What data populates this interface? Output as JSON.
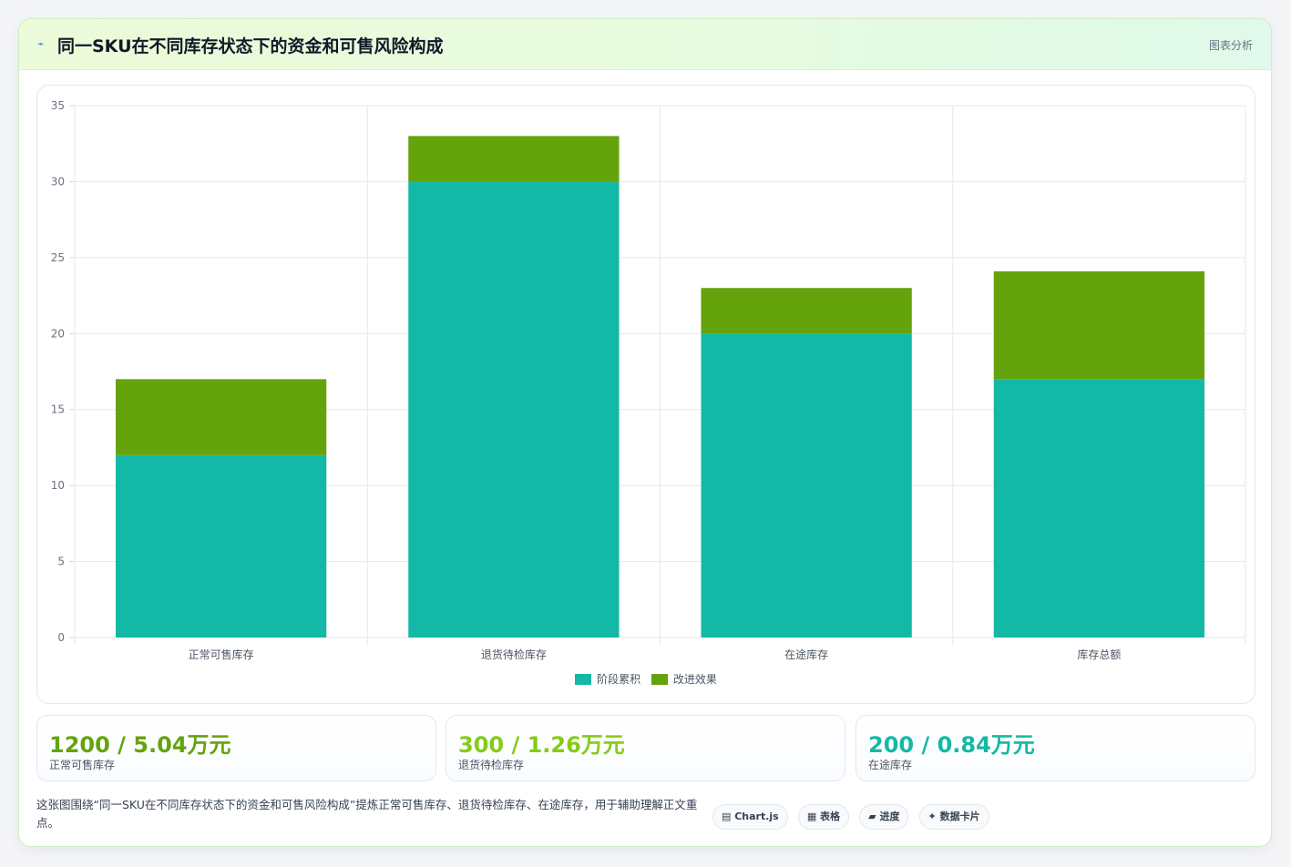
{
  "header": {
    "icon": "⌁",
    "title": "同一SKU在不同库存状态下的资金和可售风险构成",
    "tag": "图表分析"
  },
  "chart_data": {
    "type": "bar",
    "stacked": true,
    "categories": [
      "正常可售库存",
      "退货待检库存",
      "在途库存",
      "库存总额"
    ],
    "series": [
      {
        "name": "阶段累积",
        "values": [
          12,
          30,
          20,
          17
        ],
        "color": "#14b8a6"
      },
      {
        "name": "改进效果",
        "values": [
          5,
          3,
          3,
          7.1
        ],
        "color": "#65a30d"
      }
    ],
    "ylim": [
      0,
      35
    ],
    "yticks": [
      0,
      5,
      10,
      15,
      20,
      25,
      30,
      35
    ],
    "grid": true,
    "legend": "bottom-center"
  },
  "stats": [
    {
      "value": "1200 / 5.04万元",
      "label": "正常可售库存",
      "color": "#65a30d"
    },
    {
      "value": "300 / 1.26万元",
      "label": "退货待检库存",
      "color": "#84cc16"
    },
    {
      "value": "200 / 0.84万元",
      "label": "在途库存",
      "color": "#14b8a6"
    }
  ],
  "description": "这张图围绕“同一SKU在不同库存状态下的资金和可售风险构成”提炼正常可售库存、退货待检库存、在途库存，用于辅助理解正文重点。",
  "tags": [
    "▤ Chart.js",
    "▦ 表格",
    "▰ 进度",
    "✦ 数据卡片"
  ]
}
